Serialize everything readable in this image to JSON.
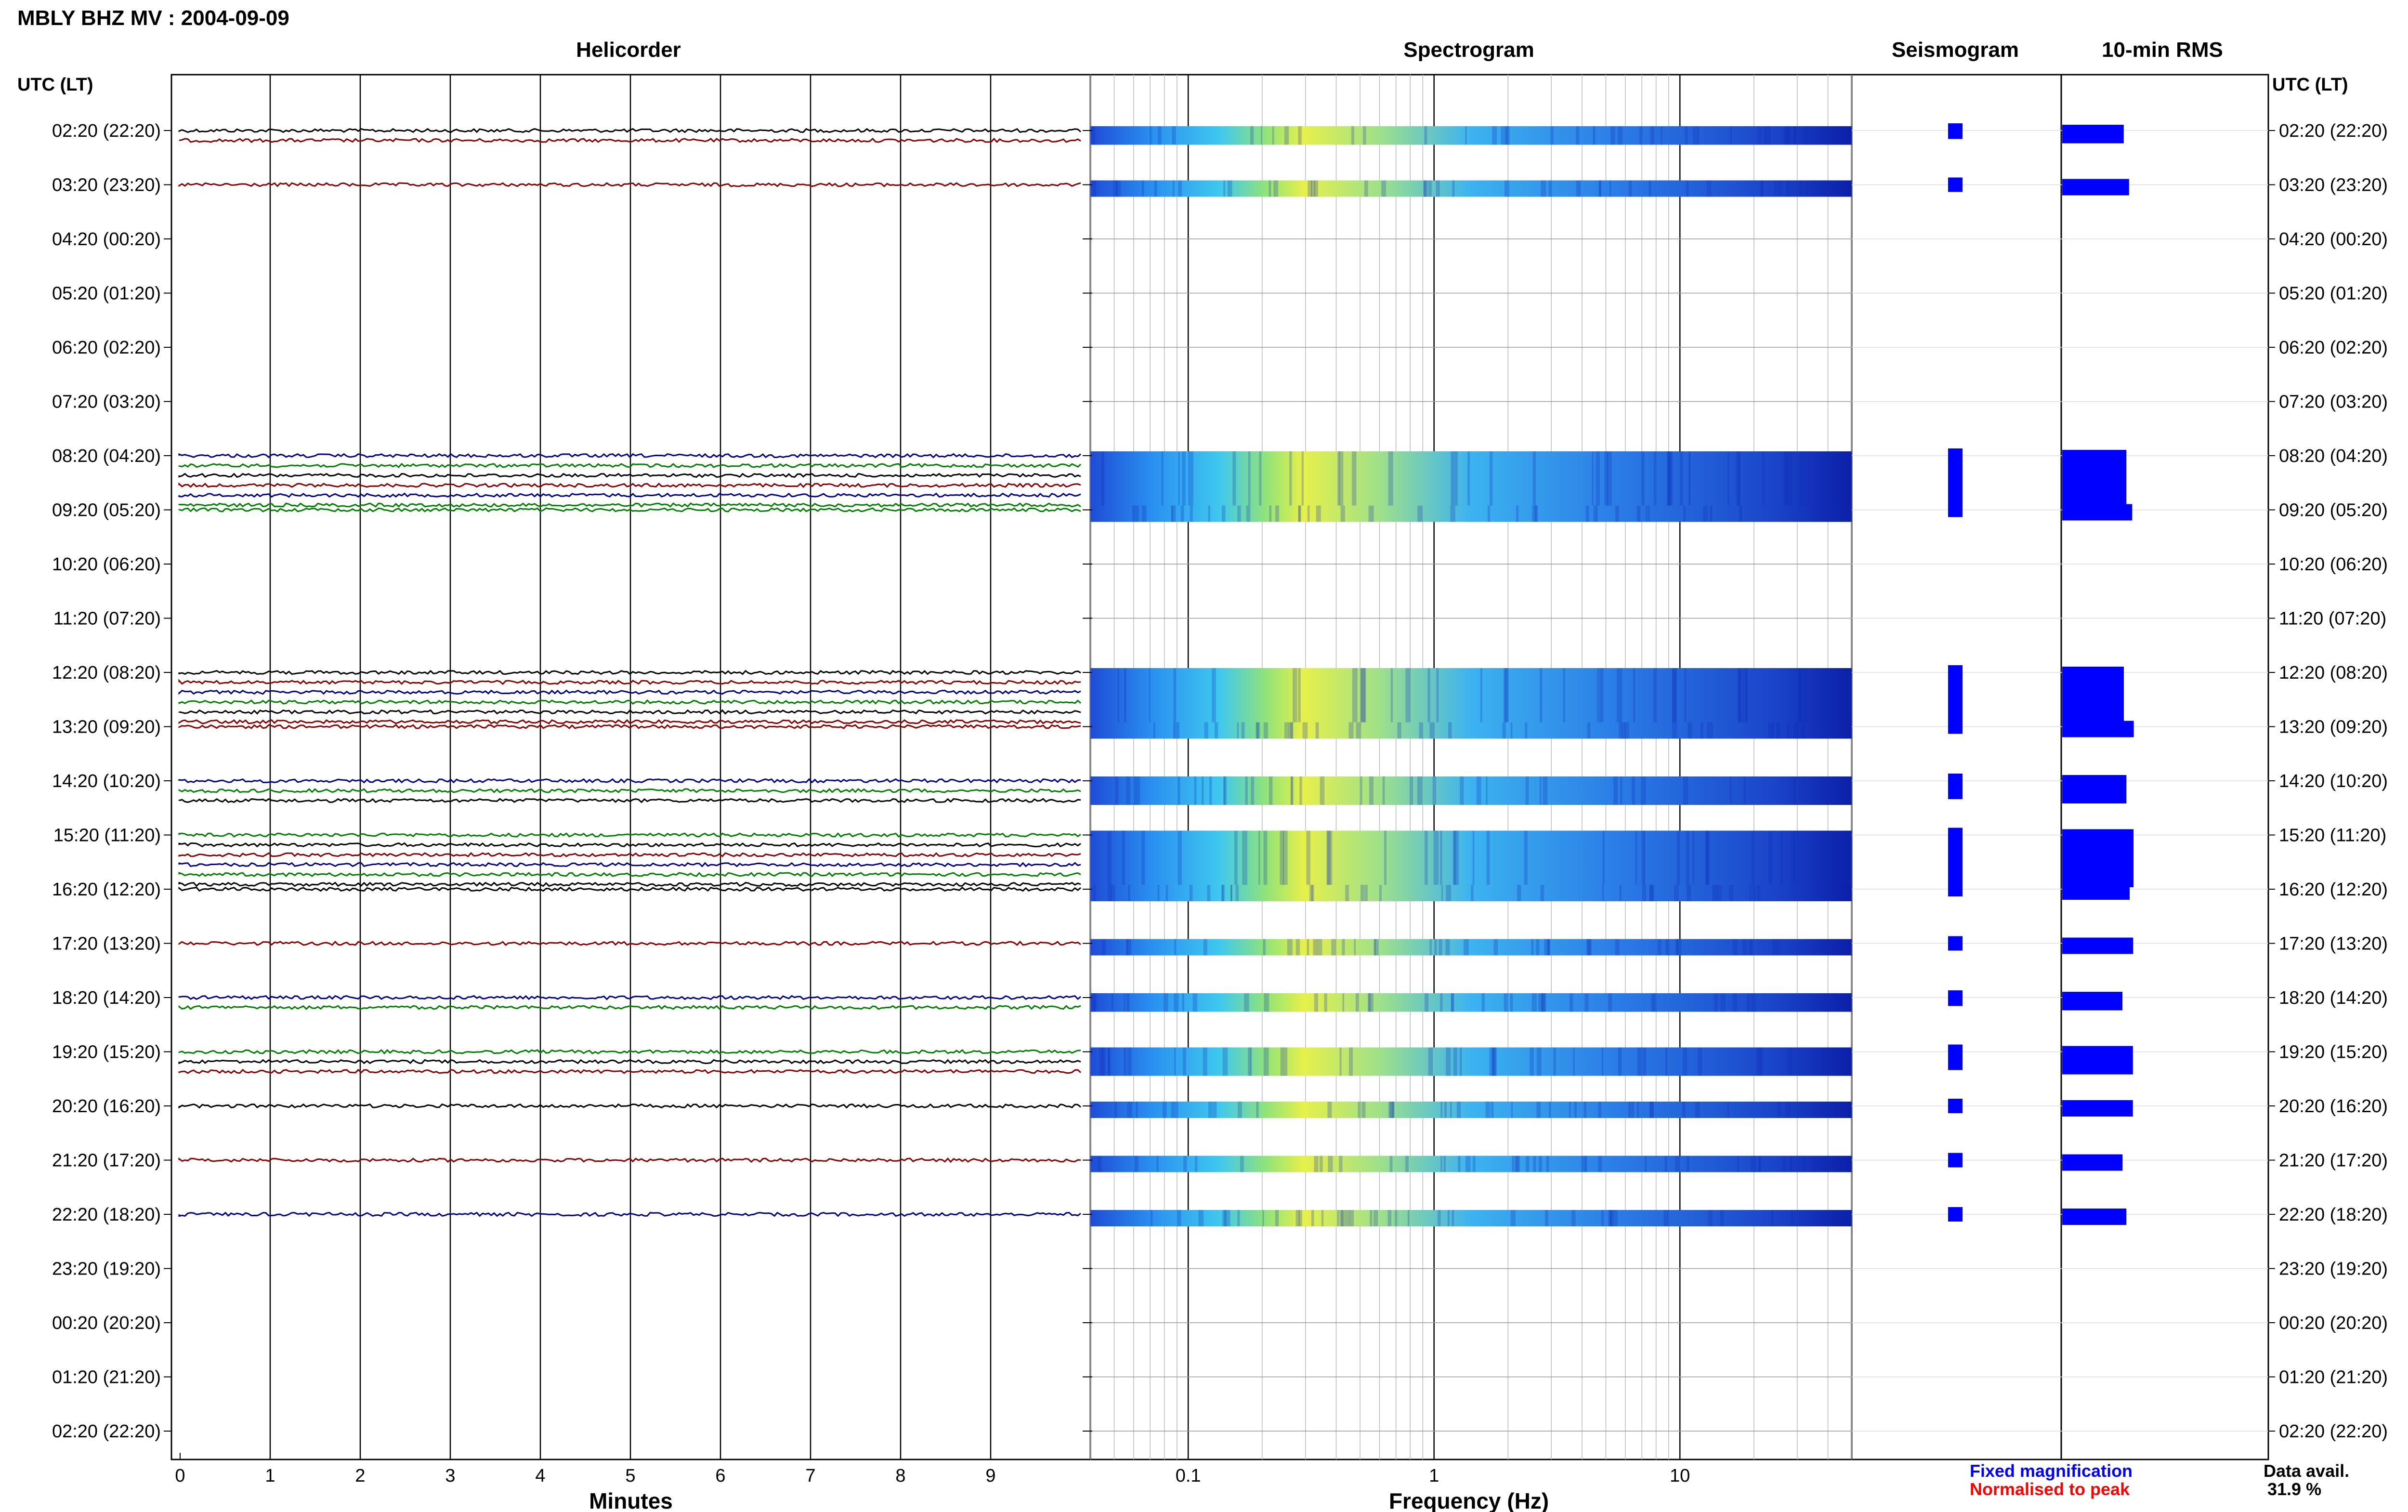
{
  "header": {
    "station_title": "MBLY BHZ MV : 2004-09-09",
    "utc_lt_label": "UTC (LT)"
  },
  "panels": {
    "helicorder": "Helicorder",
    "spectrogram": "Spectrogram",
    "seismogram": "Seismogram",
    "rms": "10-min RMS"
  },
  "axes": {
    "minutes_label": "Minutes",
    "frequency_label": "Frequency (Hz)",
    "minute_ticks": [
      "0",
      "1",
      "2",
      "3",
      "4",
      "5",
      "6",
      "7",
      "8",
      "9"
    ],
    "freq_ticks": [
      "0.1",
      "1",
      "10"
    ]
  },
  "legend": {
    "fixed": "Fixed magnification",
    "normalised": "Normalised to peak",
    "fixed_color": "#0000ff",
    "normalised_color": "#ff0000"
  },
  "data_availability": {
    "label": "Data avail.",
    "value": "31.9 %"
  },
  "chart_data": {
    "type": "heatmap",
    "title": "MBLY BHZ MV : 2004-09-09",
    "xlabel_helicorder": "Minutes",
    "xlabel_spectrogram": "Frequency (Hz)",
    "minutes_range": [
      0,
      10
    ],
    "frequency_range_hz": [
      0.04,
      50
    ],
    "frequency_scale": "log",
    "hour_labels": [
      "02:20 (22:20)",
      "03:20 (23:20)",
      "04:20 (00:20)",
      "05:20 (01:20)",
      "06:20 (02:20)",
      "07:20 (03:20)",
      "08:20 (04:20)",
      "09:20 (05:20)",
      "10:20 (06:20)",
      "11:20 (07:20)",
      "12:20 (08:20)",
      "13:20 (09:20)",
      "14:20 (10:20)",
      "15:20 (11:20)",
      "16:20 (12:20)",
      "17:20 (13:20)",
      "18:20 (14:20)",
      "19:20 (15:20)",
      "20:20 (16:20)",
      "21:20 (17:20)",
      "22:20 (18:20)",
      "23:20 (19:20)",
      "00:20 (20:20)",
      "01:20 (21:20)",
      "02:20 (22:20)"
    ],
    "trace_colors": [
      "#000000",
      "#8b0000",
      "#00008b",
      "#008000"
    ],
    "hours_with_data": [
      {
        "hour": 0,
        "traces": 2
      },
      {
        "hour": 1,
        "traces": 1
      },
      {
        "hour": 6,
        "traces": 6
      },
      {
        "hour": 7,
        "traces": 1
      },
      {
        "hour": 10,
        "traces": 6
      },
      {
        "hour": 11,
        "traces": 1
      },
      {
        "hour": 12,
        "traces": 3
      },
      {
        "hour": 13,
        "traces": 6
      },
      {
        "hour": 14,
        "traces": 1
      },
      {
        "hour": 15,
        "traces": 1
      },
      {
        "hour": 16,
        "traces": 2
      },
      {
        "hour": 17,
        "traces": 3
      },
      {
        "hour": 18,
        "traces": 1
      },
      {
        "hour": 19,
        "traces": 1
      },
      {
        "hour": 20,
        "traces": 1
      }
    ],
    "data_availability_percent": 31.9
  }
}
